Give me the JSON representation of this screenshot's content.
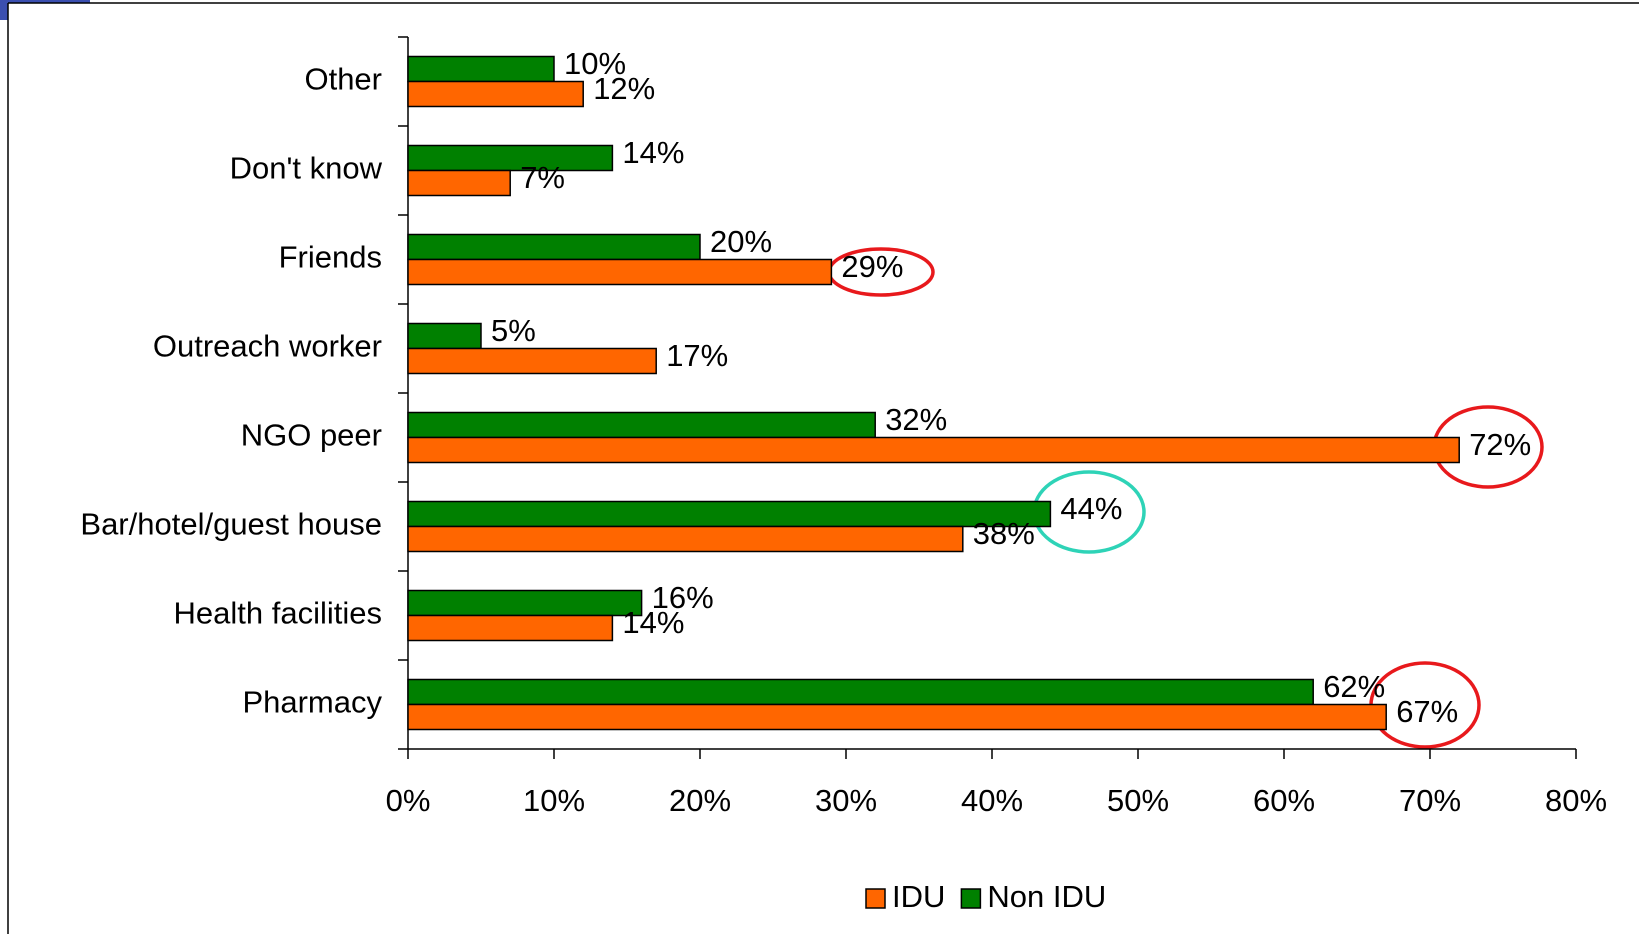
{
  "chart_data": {
    "type": "bar",
    "orientation": "horizontal",
    "categories": [
      "Other",
      "Don't know",
      "Friends",
      "Outreach worker",
      "NGO peer",
      "Bar/hotel/guest house",
      "Health facilities",
      "Pharmacy"
    ],
    "series": [
      {
        "name": "IDU",
        "color": "#ff6600",
        "values": [
          12,
          7,
          29,
          17,
          72,
          38,
          14,
          67
        ],
        "value_labels": [
          "12%",
          "7%",
          "29%",
          "17%",
          "72%",
          "38%",
          "14%",
          "67%"
        ]
      },
      {
        "name": "Non IDU",
        "color": "#008000",
        "values": [
          10,
          14,
          20,
          5,
          32,
          44,
          16,
          62
        ],
        "value_labels": [
          "10%",
          "14%",
          "20%",
          "5%",
          "32%",
          "44%",
          "16%",
          "62%"
        ]
      }
    ],
    "xlim": [
      0,
      80
    ],
    "xticks": [
      {
        "value": 0,
        "label": "0%"
      },
      {
        "value": 10,
        "label": "10%"
      },
      {
        "value": 20,
        "label": "20%"
      },
      {
        "value": 30,
        "label": "30%"
      },
      {
        "value": 40,
        "label": "40%"
      },
      {
        "value": 50,
        "label": "50%"
      },
      {
        "value": 60,
        "label": "60%"
      },
      {
        "value": 70,
        "label": "70%"
      },
      {
        "value": 80,
        "label": "80%"
      }
    ],
    "legend": "bottom"
  }
}
